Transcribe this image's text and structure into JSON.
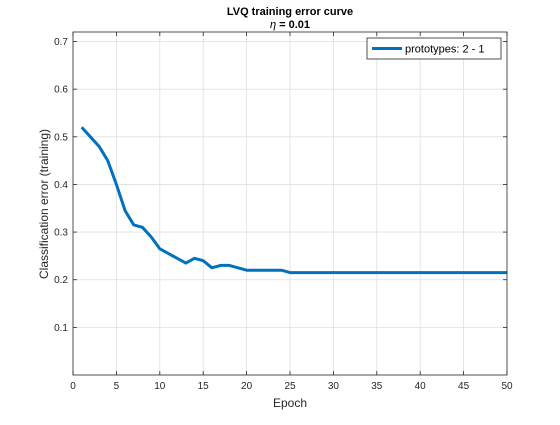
{
  "chart_data": {
    "type": "line",
    "title": "LVQ training error curve",
    "subtitle_symbol": "η",
    "subtitle_rest": " = 0.01",
    "xlabel": "Epoch",
    "ylabel": "Classification error (training)",
    "xlim": [
      0,
      50
    ],
    "ylim": [
      0,
      0.72
    ],
    "xticks": [
      0,
      5,
      10,
      15,
      20,
      25,
      30,
      35,
      40,
      45,
      50
    ],
    "yticks": [
      0.1,
      0.2,
      0.3,
      0.4,
      0.5,
      0.6,
      0.7
    ],
    "grid": true,
    "legend_position": "top-right",
    "series": [
      {
        "name": "prototypes: 2 - 1",
        "color": "#0072BD",
        "x": [
          1,
          2,
          3,
          4,
          5,
          6,
          7,
          8,
          9,
          10,
          11,
          12,
          13,
          14,
          15,
          16,
          17,
          18,
          19,
          20,
          21,
          22,
          23,
          24,
          25,
          26,
          27,
          28,
          29,
          30,
          31,
          32,
          33,
          34,
          35,
          36,
          37,
          38,
          39,
          40,
          41,
          42,
          43,
          44,
          45,
          46,
          47,
          48,
          49,
          50
        ],
        "y": [
          0.52,
          0.5,
          0.48,
          0.45,
          0.4,
          0.345,
          0.315,
          0.31,
          0.29,
          0.265,
          0.255,
          0.245,
          0.235,
          0.245,
          0.24,
          0.225,
          0.23,
          0.23,
          0.225,
          0.22,
          0.22,
          0.22,
          0.22,
          0.22,
          0.215,
          0.215,
          0.215,
          0.215,
          0.215,
          0.215,
          0.215,
          0.215,
          0.215,
          0.215,
          0.215,
          0.215,
          0.215,
          0.215,
          0.215,
          0.215,
          0.215,
          0.215,
          0.215,
          0.215,
          0.215,
          0.215,
          0.215,
          0.215,
          0.215,
          0.215
        ]
      }
    ]
  }
}
